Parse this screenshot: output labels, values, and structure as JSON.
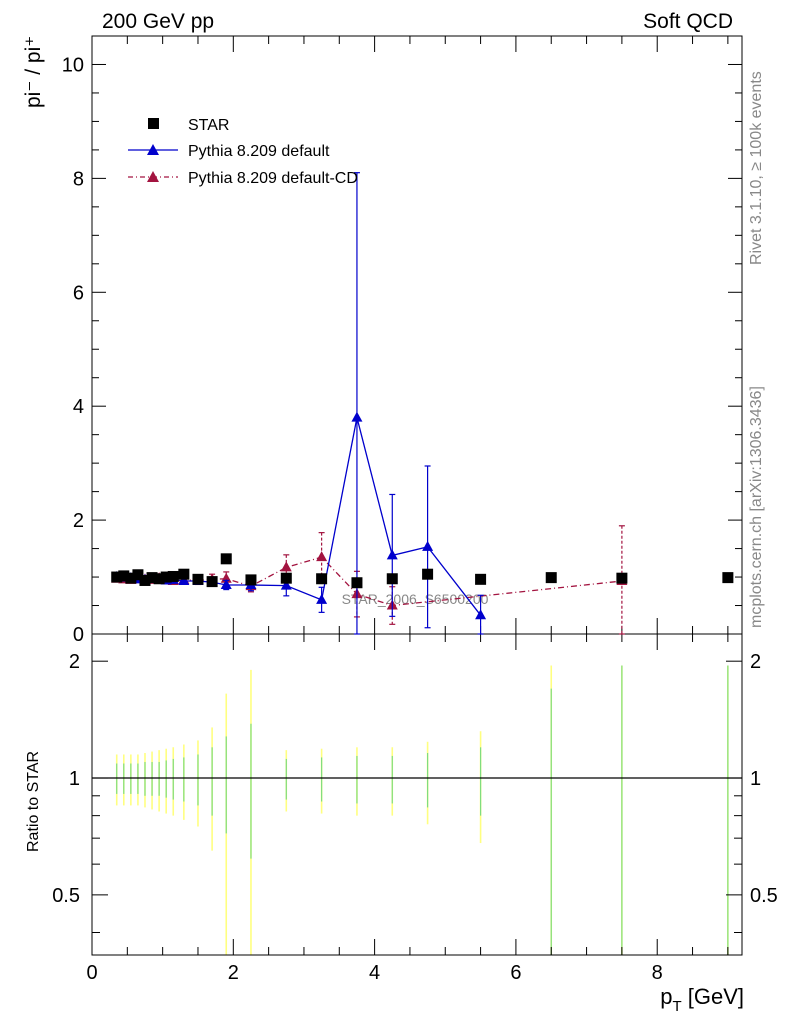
{
  "header": {
    "left": "200 GeV pp",
    "right": "Soft QCD"
  },
  "side_labels": {
    "rivet": "Rivet 3.1.10, ≥ 100k events",
    "mcplots": "mcplots.cern.ch [arXiv:1306.3436]"
  },
  "watermark": "STAR_2006_S6500200",
  "legend": {
    "star": "STAR",
    "pythia": "Pythia 8.209 default",
    "pythia_cd": "Pythia 8.209 default-CD"
  },
  "axes": {
    "ylabel_main": "pi⁻ / pi⁺",
    "ylabel_ratio": "Ratio to STAR",
    "xlabel": "p_T [GeV]"
  },
  "colors": {
    "star": "#000000",
    "pythia": "#0000cc",
    "pythia_cd": "#a31440",
    "band_green": "#7fdd7f",
    "band_yellow": "#ffff80"
  },
  "chart_data": {
    "type": "scatter",
    "xlim": [
      0,
      9.2
    ],
    "ylim_main": [
      0,
      10.5
    ],
    "ylim_ratio": [
      0.35,
      2.35
    ],
    "x_ticks": [
      0,
      2,
      4,
      6,
      8
    ],
    "y_ticks_main": [
      0,
      2,
      4,
      6,
      8,
      10
    ],
    "y_ticks_ratio": [
      0.5,
      1,
      2
    ],
    "series": [
      {
        "name": "STAR",
        "x": [
          0.35,
          0.45,
          0.55,
          0.65,
          0.75,
          0.85,
          0.95,
          1.05,
          1.15,
          1.3,
          1.5,
          1.7,
          1.9,
          2.25,
          2.75,
          3.25,
          3.75,
          4.25,
          4.75,
          5.5,
          6.5,
          7.5,
          9.0
        ],
        "y": [
          1.0,
          1.02,
          0.98,
          1.04,
          0.94,
          0.99,
          0.97,
          1.0,
          1.01,
          1.05,
          0.96,
          0.92,
          1.32,
          0.95,
          0.98,
          0.97,
          0.9,
          0.97,
          1.05,
          0.96,
          0.99,
          0.98,
          0.99
        ],
        "rel_err_green": [
          0.09,
          0.09,
          0.09,
          0.09,
          0.1,
          0.1,
          0.1,
          0.11,
          0.12,
          0.13,
          0.15,
          0.2,
          0.28,
          0.38,
          0.12,
          0.13,
          0.14,
          0.14,
          0.16,
          0.2,
          0.7,
          0.95,
          0.95
        ],
        "rel_err_yellow": [
          0.15,
          0.15,
          0.15,
          0.15,
          0.16,
          0.17,
          0.18,
          0.19,
          0.2,
          0.22,
          0.25,
          0.35,
          0.65,
          0.9,
          0.18,
          0.19,
          0.2,
          0.2,
          0.24,
          0.32,
          0.95,
          0.95,
          0.95
        ]
      },
      {
        "name": "Pythia 8.209 default",
        "x": [
          0.35,
          0.45,
          0.55,
          0.65,
          0.75,
          0.85,
          0.95,
          1.05,
          1.15,
          1.3,
          1.5,
          1.7,
          1.9,
          2.25,
          2.75,
          3.25,
          3.75,
          4.25,
          4.75,
          5.5
        ],
        "y": [
          1.0,
          0.99,
          0.98,
          0.96,
          0.95,
          0.97,
          0.95,
          0.94,
          0.95,
          0.93,
          0.93,
          0.91,
          0.86,
          0.86,
          0.85,
          0.6,
          3.8,
          1.38,
          1.53,
          0.33
        ],
        "err": [
          0.02,
          0.02,
          0.02,
          0.02,
          0.02,
          0.03,
          0.03,
          0.03,
          0.04,
          0.04,
          0.05,
          0.06,
          0.08,
          0.1,
          0.18,
          0.22,
          4.3,
          1.07,
          1.42,
          0.35
        ]
      },
      {
        "name": "Pythia 8.209 default-CD",
        "x": [
          0.35,
          0.45,
          0.55,
          0.65,
          0.75,
          0.85,
          0.95,
          1.05,
          1.15,
          1.3,
          1.5,
          1.7,
          1.9,
          2.25,
          2.75,
          3.25,
          3.75,
          4.25,
          7.5
        ],
        "y": [
          0.97,
          0.96,
          0.95,
          0.97,
          0.96,
          0.95,
          0.98,
          0.94,
          0.93,
          0.95,
          0.94,
          0.96,
          0.97,
          0.84,
          1.17,
          1.35,
          0.7,
          0.5,
          0.93
        ],
        "err": [
          0.03,
          0.03,
          0.03,
          0.03,
          0.04,
          0.04,
          0.04,
          0.05,
          0.05,
          0.06,
          0.07,
          0.09,
          0.12,
          0.1,
          0.22,
          0.43,
          0.4,
          0.33,
          0.97
        ]
      }
    ]
  }
}
